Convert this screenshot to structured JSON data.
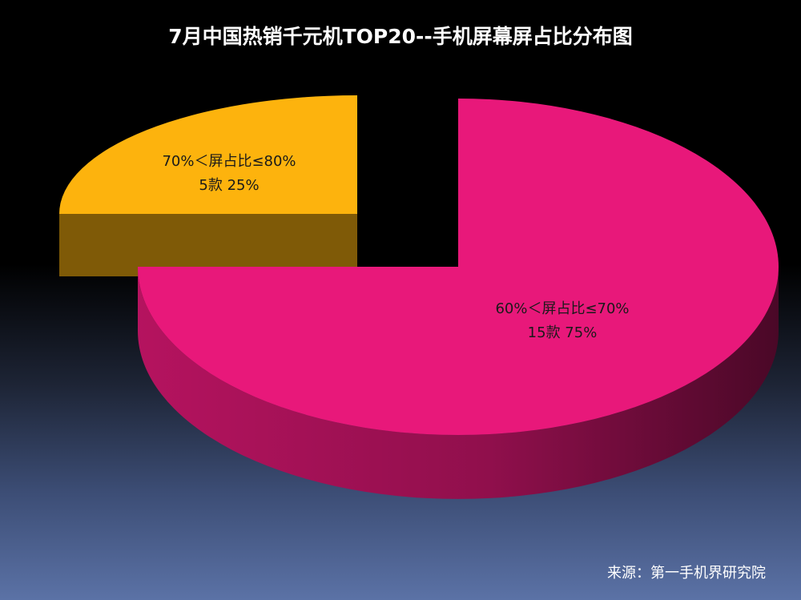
{
  "chart_data": {
    "type": "pie",
    "title": "7月中国热销千元机TOP20--手机屏幕屏占比分布图",
    "categories": [
      "60%＜屏占比≤70%",
      "70%＜屏占比≤80%"
    ],
    "series": [
      {
        "values": [
          15,
          5
        ]
      }
    ],
    "counts_text": [
      "15款",
      "5款"
    ],
    "percent_text": [
      "75%",
      "25%"
    ],
    "colors": [
      "#e8187a",
      "#fdb30d"
    ],
    "exploded": true,
    "three_d": true
  },
  "source": "来源：第一手机界研究院"
}
